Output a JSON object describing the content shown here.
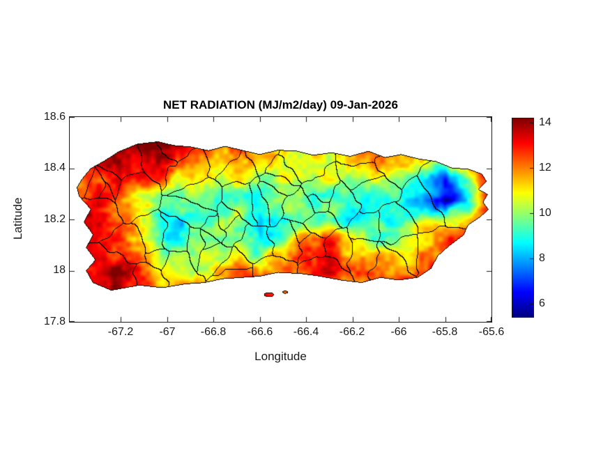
{
  "chart_data": {
    "type": "heatmap",
    "title": "NET RADIATION (MJ/m2/day) 09-Jan-2026",
    "xlabel": "Longitude",
    "ylabel": "Latitude",
    "region": "Puerto Rico",
    "xlim": [
      -67.42,
      -65.6
    ],
    "ylim": [
      17.8,
      18.6
    ],
    "x_ticks": [
      -67.2,
      -67,
      -66.8,
      -66.6,
      -66.4,
      -66.2,
      -66,
      -65.8,
      -65.6
    ],
    "x_tick_labels": [
      "-67.2",
      "-67",
      "-66.8",
      "-66.6",
      "-66.4",
      "-66.2",
      "-66",
      "-65.8",
      "-65.6"
    ],
    "y_ticks": [
      18.6,
      18.4,
      18.2,
      18,
      17.8
    ],
    "y_tick_labels": [
      "18.6",
      "18.4",
      "18.2",
      "18",
      "17.8"
    ],
    "colorbar": {
      "min": 5.4,
      "max": 14.2,
      "ticks": [
        14,
        12,
        10,
        8,
        6
      ],
      "tick_labels": [
        "14",
        "12",
        "10",
        "8",
        "6"
      ],
      "colormap": "jet",
      "position": "right"
    },
    "grid_lon": {
      "start": -67.4,
      "step": 0.1,
      "count": 19
    },
    "grid_lat": {
      "start": 18.5,
      "step": -0.075,
      "count": 9
    },
    "values": [
      [
        12.5,
        13.0,
        13.5,
        13.8,
        13.6,
        12.8,
        12.2,
        12.6,
        11.6,
        11.8,
        11.2,
        11.8,
        11.4,
        12.0,
        11.8,
        11.4,
        11.0,
        12.0,
        12.6
      ],
      [
        12.6,
        13.2,
        13.9,
        14.0,
        13.4,
        12.2,
        11.2,
        11.8,
        10.6,
        11.4,
        10.4,
        10.8,
        11.0,
        11.6,
        11.0,
        10.4,
        10.0,
        11.6,
        13.0
      ],
      [
        12.0,
        13.0,
        13.4,
        12.8,
        11.6,
        10.6,
        10.2,
        10.8,
        9.6,
        10.2,
        9.6,
        10.4,
        10.0,
        10.6,
        10.4,
        9.0,
        7.5,
        10.0,
        13.4
      ],
      [
        12.4,
        13.2,
        12.2,
        10.8,
        9.8,
        9.2,
        9.6,
        9.2,
        9.0,
        9.6,
        9.2,
        9.6,
        9.4,
        9.0,
        9.4,
        8.2,
        5.6,
        9.0,
        13.2
      ],
      [
        12.8,
        13.4,
        12.4,
        9.8,
        8.6,
        8.2,
        9.2,
        10.4,
        8.6,
        8.8,
        9.6,
        9.0,
        8.6,
        8.8,
        9.2,
        10.2,
        10.8,
        11.0,
        12.6
      ],
      [
        12.4,
        13.0,
        12.2,
        10.4,
        8.4,
        9.6,
        10.2,
        9.6,
        8.4,
        9.8,
        12.4,
        12.8,
        10.8,
        9.6,
        10.2,
        11.4,
        12.6,
        12.2,
        12.4
      ],
      [
        12.8,
        13.2,
        13.0,
        12.0,
        10.6,
        10.2,
        10.8,
        11.2,
        10.2,
        11.6,
        13.2,
        13.2,
        11.6,
        11.2,
        11.6,
        12.2,
        12.8,
        12.6,
        12.4
      ],
      [
        13.0,
        13.3,
        13.5,
        12.6,
        11.6,
        11.2,
        11.6,
        12.2,
        12.6,
        12.2,
        12.6,
        12.6,
        12.2,
        12.2,
        12.6,
        12.6,
        12.6,
        12.5,
        12.4
      ],
      [
        13.0,
        13.0,
        13.0,
        12.6,
        12.2,
        12.0,
        12.2,
        12.6,
        13.0,
        12.6,
        12.6,
        12.6,
        12.2,
        12.6,
        12.6,
        12.6,
        12.5,
        12.5,
        12.4
      ]
    ],
    "coastline": [
      [
        -67.37,
        18.355
      ],
      [
        -67.33,
        18.4
      ],
      [
        -67.27,
        18.43
      ],
      [
        -67.21,
        18.465
      ],
      [
        -67.13,
        18.495
      ],
      [
        -67.04,
        18.505
      ],
      [
        -66.97,
        18.49
      ],
      [
        -66.9,
        18.485
      ],
      [
        -66.82,
        18.47
      ],
      [
        -66.75,
        18.487
      ],
      [
        -66.67,
        18.47
      ],
      [
        -66.6,
        18.455
      ],
      [
        -66.52,
        18.472
      ],
      [
        -66.44,
        18.468
      ],
      [
        -66.37,
        18.452
      ],
      [
        -66.29,
        18.462
      ],
      [
        -66.21,
        18.448
      ],
      [
        -66.13,
        18.468
      ],
      [
        -66.06,
        18.443
      ],
      [
        -65.99,
        18.455
      ],
      [
        -65.91,
        18.437
      ],
      [
        -65.84,
        18.428
      ],
      [
        -65.77,
        18.402
      ],
      [
        -65.7,
        18.398
      ],
      [
        -65.64,
        18.378
      ],
      [
        -65.62,
        18.348
      ],
      [
        -65.655,
        18.318
      ],
      [
        -65.615,
        18.298
      ],
      [
        -65.635,
        18.268
      ],
      [
        -65.612,
        18.238
      ],
      [
        -65.65,
        18.208
      ],
      [
        -65.7,
        18.178
      ],
      [
        -65.72,
        18.138
      ],
      [
        -65.78,
        18.098
      ],
      [
        -65.83,
        18.058
      ],
      [
        -65.86,
        18.008
      ],
      [
        -65.92,
        17.972
      ],
      [
        -66.0,
        17.962
      ],
      [
        -66.08,
        17.972
      ],
      [
        -66.16,
        17.952
      ],
      [
        -66.25,
        17.962
      ],
      [
        -66.34,
        17.977
      ],
      [
        -66.42,
        17.987
      ],
      [
        -66.52,
        17.992
      ],
      [
        -66.6,
        17.977
      ],
      [
        -66.68,
        17.972
      ],
      [
        -66.76,
        17.967
      ],
      [
        -66.84,
        17.952
      ],
      [
        -66.92,
        17.947
      ],
      [
        -67.02,
        17.932
      ],
      [
        -67.12,
        17.942
      ],
      [
        -67.24,
        17.922
      ],
      [
        -67.32,
        17.952
      ],
      [
        -67.35,
        18.0
      ],
      [
        -67.31,
        18.042
      ],
      [
        -67.35,
        18.09
      ],
      [
        -67.32,
        18.14
      ],
      [
        -67.36,
        18.19
      ],
      [
        -67.33,
        18.24
      ],
      [
        -67.38,
        18.29
      ],
      [
        -67.39,
        18.325
      ]
    ],
    "islets": [
      [
        -66.56,
        17.906,
        0.022,
        0.009
      ],
      [
        -66.49,
        17.916,
        0.012,
        0.006
      ]
    ],
    "boundaries": {
      "style": "municipal",
      "count": 60
    }
  },
  "colors": {
    "axis": "#1a1a1a",
    "boundary_line": "#000000",
    "background": "#ffffff"
  }
}
